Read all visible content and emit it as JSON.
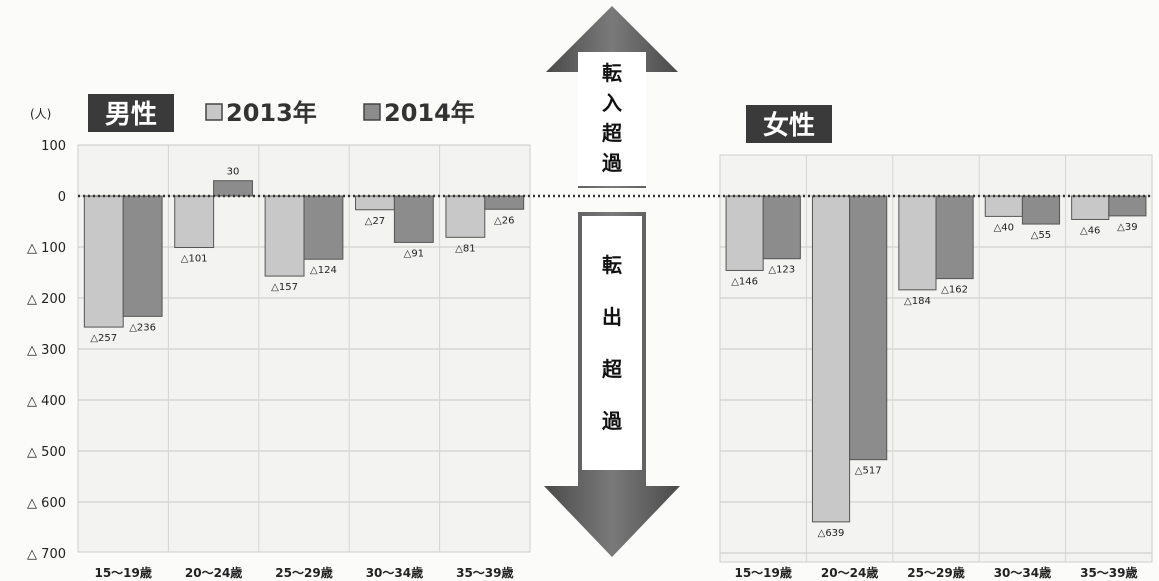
{
  "unit_label": "(人)",
  "legend": [
    {
      "name": "2013年",
      "color": "#c8c8c8"
    },
    {
      "name": "2014年",
      "color": "#8c8c8c"
    }
  ],
  "arrow_up_label": "転入超過",
  "arrow_down_label": "転出超過",
  "chart_data": [
    {
      "type": "bar",
      "title": "男性",
      "categories": [
        "15〜19歳",
        "20〜24歳",
        "25〜29歳",
        "30〜34歳",
        "35〜39歳"
      ],
      "series": [
        {
          "name": "2013年",
          "values": [
            -257,
            -101,
            -157,
            -27,
            -81
          ],
          "labels": [
            "△257",
            "△101",
            "△157",
            "△27",
            "△81"
          ]
        },
        {
          "name": "2014年",
          "values": [
            -236,
            30,
            -124,
            -91,
            -26
          ],
          "labels": [
            "△236",
            "30",
            "△124",
            "△91",
            "△26"
          ]
        }
      ],
      "yticks": [
        100,
        0,
        -100,
        -200,
        -300,
        -400,
        -500,
        -600,
        -700
      ],
      "ytick_labels": [
        "100",
        "0",
        "△ 100",
        "△ 200",
        "△ 300",
        "△ 400",
        "△ 500",
        "△ 600",
        "△ 700"
      ],
      "ylim": [
        -700,
        100
      ],
      "grid": true
    },
    {
      "type": "bar",
      "title": "女性",
      "categories": [
        "15〜19歳",
        "20〜24歳",
        "25〜29歳",
        "30〜34歳",
        "35〜39歳"
      ],
      "series": [
        {
          "name": "2013年",
          "values": [
            -146,
            -639,
            -184,
            -40,
            -46
          ],
          "labels": [
            "△146",
            "△639",
            "△184",
            "△40",
            "△46"
          ]
        },
        {
          "name": "2014年",
          "values": [
            -123,
            -517,
            -162,
            -55,
            -39
          ],
          "labels": [
            "△123",
            "△517",
            "△162",
            "△55",
            "△39"
          ]
        }
      ],
      "ylim": [
        -700,
        100
      ],
      "grid": true
    }
  ]
}
